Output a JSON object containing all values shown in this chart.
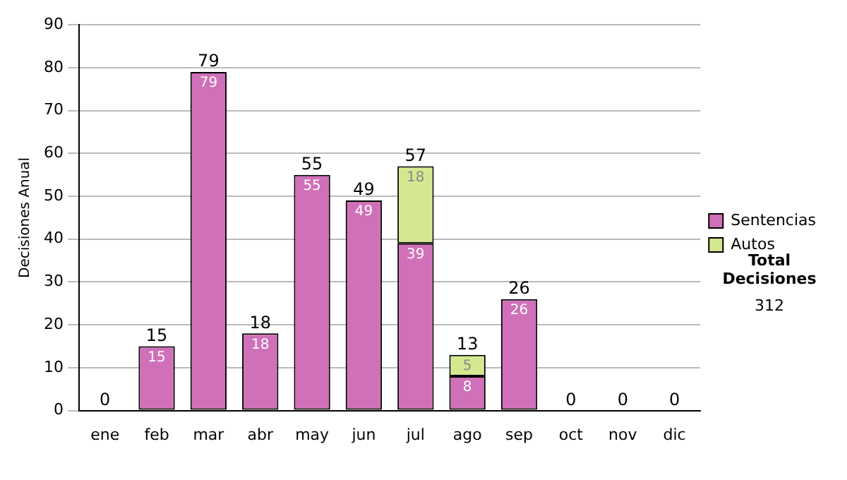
{
  "chart_data": {
    "type": "bar",
    "stacked": true,
    "ylabel": "Decisiones Anual",
    "categories": [
      "ene",
      "feb",
      "mar",
      "abr",
      "may",
      "jun",
      "jul",
      "ago",
      "sep",
      "oct",
      "nov",
      "dic"
    ],
    "series": [
      {
        "name": "Sentencias",
        "color": "#d070b8",
        "values": [
          0,
          15,
          79,
          18,
          55,
          49,
          39,
          8,
          26,
          0,
          0,
          0
        ],
        "value_labels": [
          null,
          "15",
          "79",
          "18",
          "55",
          "49",
          "39",
          "8",
          "26",
          null,
          null,
          null
        ]
      },
      {
        "name": "Autos",
        "color": "#d4e890",
        "values": [
          0,
          0,
          0,
          0,
          0,
          0,
          18,
          5,
          0,
          0,
          0,
          0
        ],
        "value_labels": [
          null,
          null,
          null,
          null,
          null,
          null,
          "18",
          "5",
          null,
          null,
          null,
          null
        ]
      }
    ],
    "totals": [
      "0",
      "15",
      "79",
      "18",
      "55",
      "49",
      "57",
      "13",
      "26",
      "0",
      "0",
      "0"
    ],
    "ylim": [
      0,
      90
    ],
    "yticks": [
      0,
      10,
      20,
      30,
      40,
      50,
      60,
      70,
      80,
      90
    ],
    "grid": "y",
    "legend": "right",
    "annotations": [
      "Total Decisiones",
      "312"
    ]
  }
}
